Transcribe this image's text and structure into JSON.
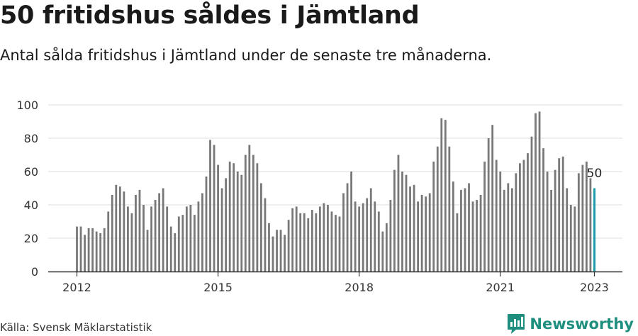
{
  "header": {
    "title": "50 fritidshus såldes i Jämtland",
    "subtitle": "Antal sålda fritidshus i Jämtland under de senaste tre månaderna."
  },
  "footer": {
    "source": "Källa: Svensk Mäklarstatistik",
    "brand": "Newsworthy"
  },
  "colors": {
    "bar": "#787878",
    "highlight": "#1a9bab",
    "grid": "#dddddd",
    "axis": "#333333",
    "brand": "#1e8f7e"
  },
  "chart_data": {
    "type": "bar",
    "title": "50 fritidshus såldes i Jämtland",
    "subtitle": "Antal sålda fritidshus i Jämtland under de senaste tre månaderna.",
    "x_start": "2012-01",
    "x_interval": "month",
    "xticks": [
      "2012",
      "2015",
      "2018",
      "2021",
      "2023"
    ],
    "yticks": [
      0,
      20,
      40,
      60,
      80,
      100
    ],
    "ylim": [
      0,
      100
    ],
    "grid": true,
    "values": [
      27,
      27,
      22,
      26,
      26,
      24,
      23,
      26,
      36,
      46,
      52,
      51,
      48,
      39,
      35,
      46,
      49,
      40,
      25,
      39,
      43,
      47,
      50,
      39,
      27,
      23,
      33,
      34,
      39,
      40,
      34,
      42,
      47,
      57,
      79,
      76,
      64,
      50,
      56,
      66,
      65,
      60,
      58,
      70,
      76,
      70,
      65,
      53,
      44,
      29,
      21,
      25,
      25,
      22,
      31,
      38,
      39,
      35,
      35,
      32,
      37,
      35,
      39,
      41,
      40,
      36,
      34,
      33,
      47,
      53,
      60,
      42,
      39,
      41,
      44,
      50,
      42,
      36,
      24,
      29,
      43,
      61,
      70,
      60,
      58,
      51,
      52,
      42,
      46,
      45,
      47,
      66,
      75,
      92,
      91,
      75,
      54,
      35,
      49,
      50,
      53,
      42,
      43,
      46,
      66,
      80,
      88,
      67,
      60,
      49,
      53,
      50,
      59,
      65,
      67,
      71,
      81,
      95,
      96,
      74,
      60,
      49,
      61,
      68,
      69,
      50,
      40,
      39,
      59,
      64,
      66,
      56,
      50
    ],
    "highlight_last": true,
    "annotation": "50"
  }
}
